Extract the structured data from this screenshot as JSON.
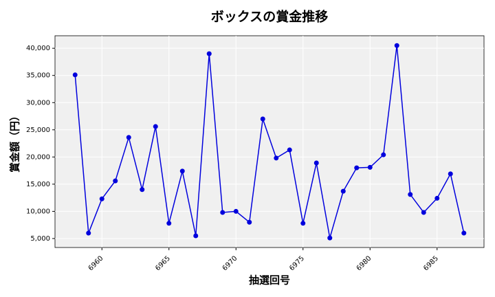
{
  "chart_data": {
    "type": "line",
    "title": "ボックスの賞金推移",
    "x_label": "抽選回号",
    "y_label": "賞金額（円）",
    "x": [
      6958,
      6959,
      6960,
      6961,
      6962,
      6963,
      6964,
      6965,
      6966,
      6967,
      6968,
      6969,
      6970,
      6971,
      6972,
      6973,
      6974,
      6975,
      6976,
      6977,
      6978,
      6979,
      6980,
      6981,
      6982,
      6983,
      6984,
      6985,
      6986,
      6987
    ],
    "series": [
      {
        "color": "#0000dd",
        "values": [
          35100,
          6000,
          12300,
          15600,
          23600,
          14000,
          25600,
          7800,
          17400,
          5500,
          39000,
          9800,
          10000,
          8000,
          27000,
          19800,
          21300,
          7800,
          18900,
          5100,
          13700,
          18000,
          18100,
          20400,
          40500,
          13100,
          9800,
          12400,
          16900,
          6000
        ]
      }
    ],
    "xlim": [
      6956.5,
      6988.5
    ],
    "ylim": [
      3350,
      42300
    ],
    "xticks": [
      6960,
      6965,
      6970,
      6975,
      6980,
      6985
    ],
    "yticks": [
      {
        "value": 5000,
        "label": "5,000"
      },
      {
        "value": 10000,
        "label": "10,000"
      },
      {
        "value": 15000,
        "label": "15,000"
      },
      {
        "value": 20000,
        "label": "20,000"
      },
      {
        "value": 25000,
        "label": "25,000"
      },
      {
        "value": 30000,
        "label": "30,000"
      },
      {
        "value": 35000,
        "label": "35,000"
      },
      {
        "value": 40000,
        "label": "40,000"
      }
    ],
    "grid": true
  }
}
